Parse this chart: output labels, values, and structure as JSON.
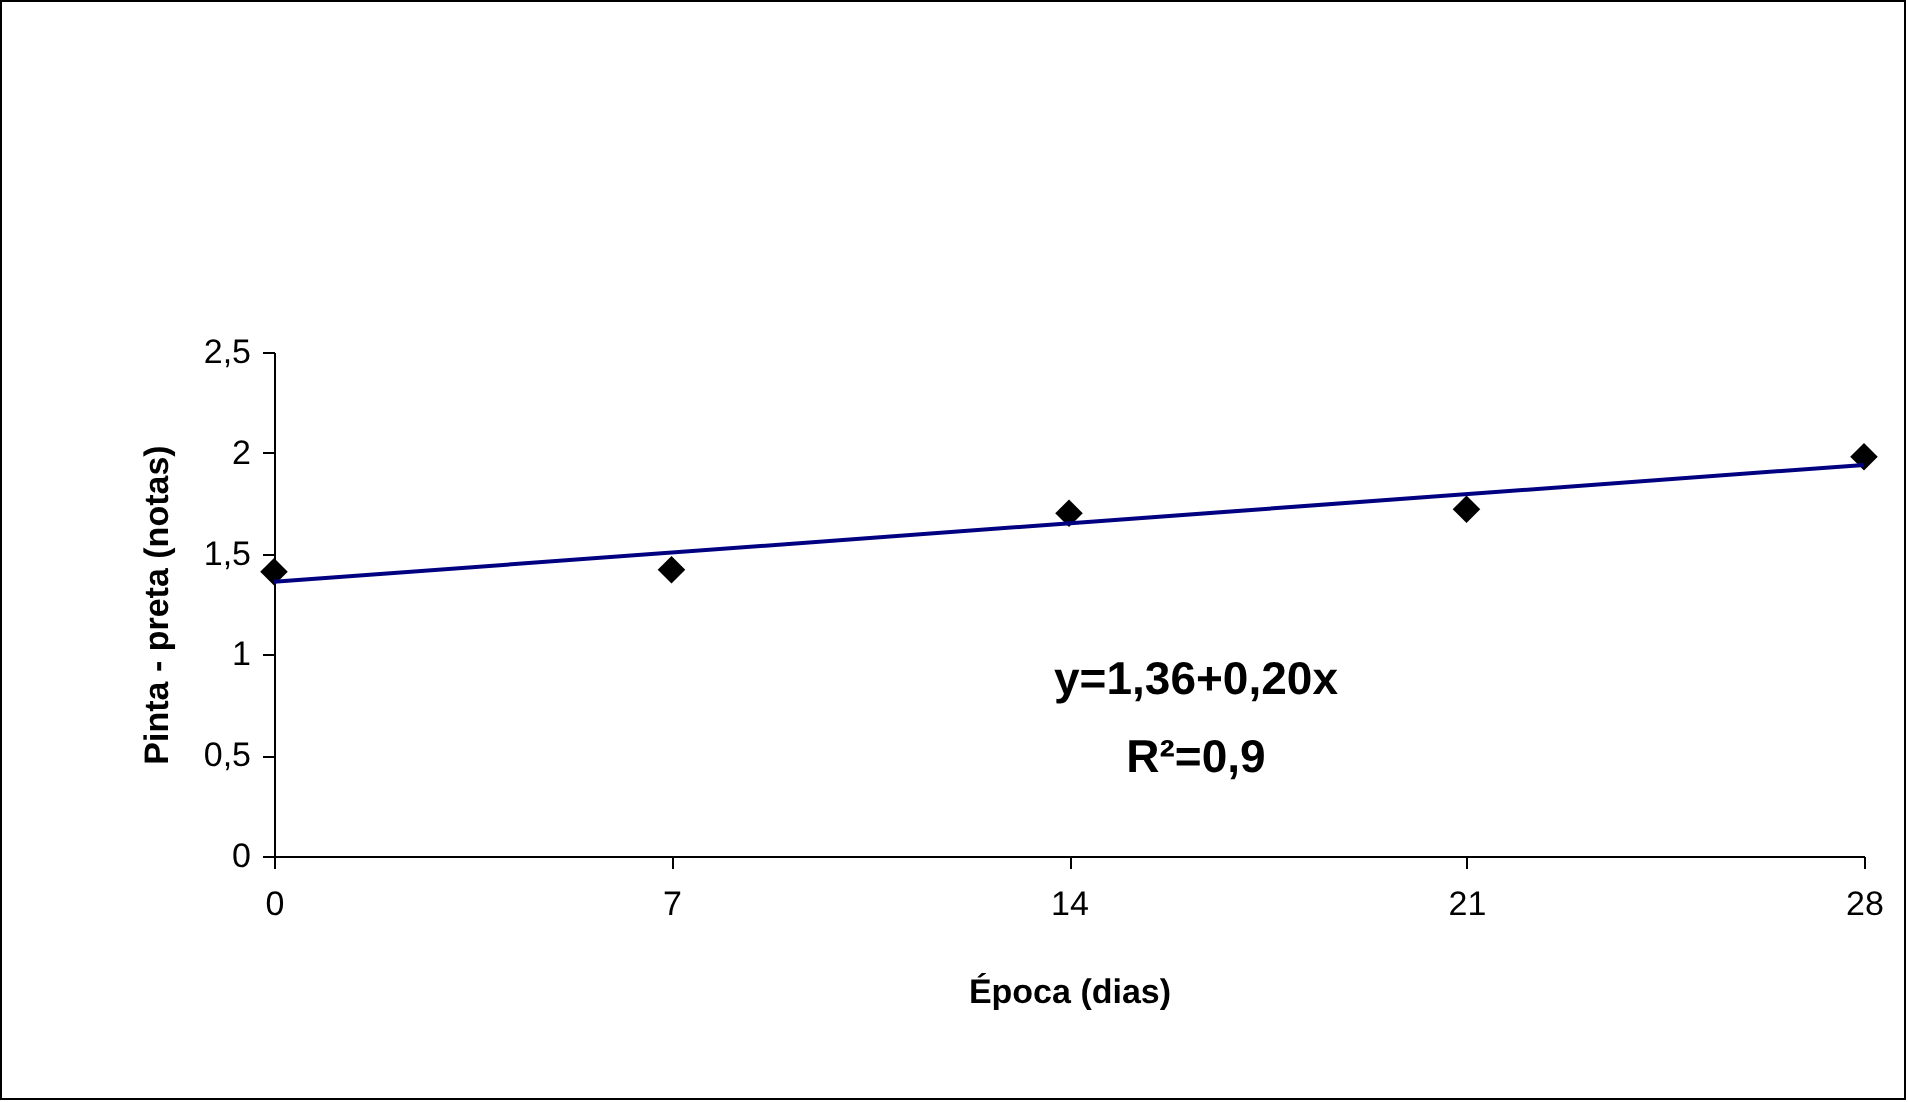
{
  "chart_data": {
    "type": "scatter",
    "xlabel": "Época (dias)",
    "ylabel": "Pinta - preta (notas)",
    "x": [
      0,
      7,
      14,
      21,
      28
    ],
    "series": [
      {
        "color": "#000000",
        "values": [
          1.41,
          1.42,
          1.7,
          1.72,
          1.98
        ]
      },
      {
        "type": "line",
        "marker": "none",
        "color": "#000080",
        "x": [
          0,
          28
        ],
        "values": [
          1.36,
          1.94
        ]
      }
    ],
    "marker": "diamond",
    "grid": false,
    "xlim": [
      0,
      28
    ],
    "xticks": [
      0,
      7,
      14,
      21,
      28
    ],
    "ylim": [
      0,
      2.5
    ],
    "yticks": [
      0,
      {
        "value": 0.5,
        "label": "0,5"
      },
      1,
      {
        "value": 1.5,
        "label": "1,5"
      },
      2,
      {
        "value": 2.5,
        "label": "2,5"
      }
    ],
    "annotations": [
      "y=1,36+0,20x",
      "R²=0,9"
    ]
  }
}
